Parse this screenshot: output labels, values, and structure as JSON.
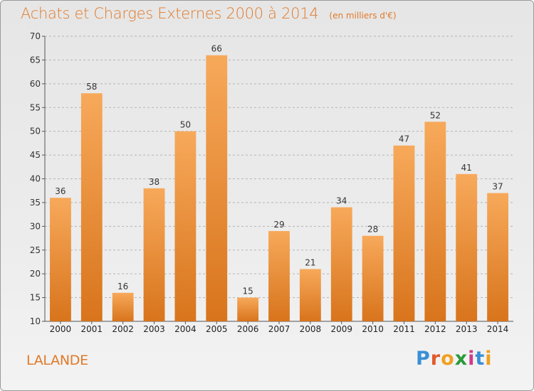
{
  "header": {
    "title": "Achats et Charges Externes 2000 à 2014",
    "unit": "(en milliers d'€)"
  },
  "commune": "LALANDE",
  "logo": {
    "text": "Proxiti",
    "letter_colors": [
      "#3a8fd6",
      "#e05a2a",
      "#f0a020",
      "#2a9a3a",
      "#d03a8a",
      "#3a8fd6",
      "#f0a020"
    ]
  },
  "chart_data": {
    "type": "bar",
    "title": "Achats et Charges Externes 2000 à 2014",
    "categories": [
      "2000",
      "2001",
      "2002",
      "2003",
      "2004",
      "2005",
      "2006",
      "2007",
      "2008",
      "2009",
      "2010",
      "2011",
      "2012",
      "2013",
      "2014"
    ],
    "values": [
      36,
      58,
      16,
      38,
      50,
      66,
      15,
      29,
      21,
      34,
      28,
      47,
      52,
      41,
      37
    ],
    "ylim": [
      10,
      70
    ],
    "yticks": [
      10,
      15,
      20,
      25,
      30,
      35,
      40,
      45,
      50,
      55,
      60,
      65,
      70
    ],
    "grid": true,
    "bar_color_top": "#f7a95a",
    "bar_color_bottom": "#d8741c"
  }
}
